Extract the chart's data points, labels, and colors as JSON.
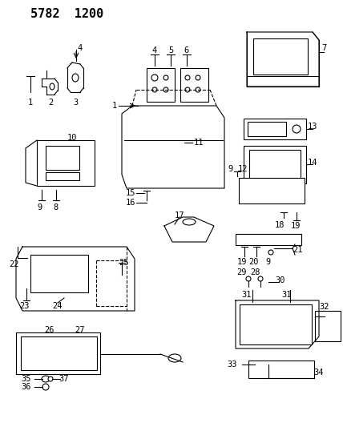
{
  "title": "5782  1200",
  "bg_color": "#ffffff",
  "line_color": "#000000",
  "title_fontsize": 11,
  "label_fontsize": 7.5
}
